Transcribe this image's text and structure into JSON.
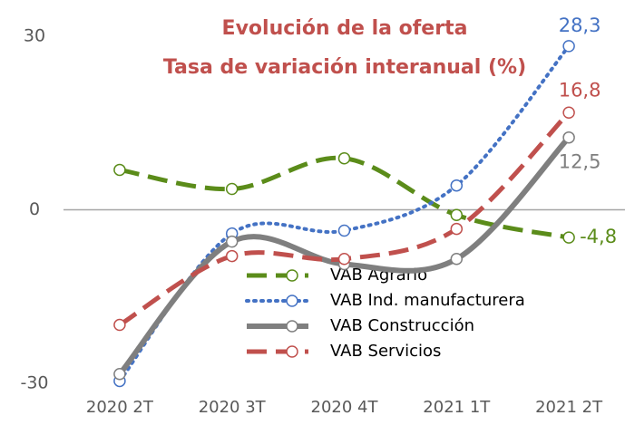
{
  "chart_data": {
    "type": "line",
    "title": "Evolución de la oferta",
    "subtitle": "Tasa de variación interanual (%)",
    "categories": [
      "2020 2T",
      "2020 3T",
      "2020 4T",
      "2021 1T",
      "2021 2T"
    ],
    "series": [
      {
        "name": "VAB Agrario",
        "color": "#5b8c1a",
        "dash": "dashed",
        "values": [
          6.9,
          3.6,
          8.9,
          -0.9,
          -4.8
        ],
        "value_labels": [
          null,
          null,
          null,
          null,
          "-4,8"
        ]
      },
      {
        "name": "VAB Ind. manufacturera",
        "color": "#4472c4",
        "dash": "dotted",
        "values": [
          -29.6,
          -4.1,
          -3.6,
          4.2,
          28.3
        ],
        "value_labels": [
          null,
          null,
          null,
          null,
          "28,3"
        ]
      },
      {
        "name": "VAB Construcción",
        "color": "#7f7f7f",
        "dash": "solid",
        "values": [
          -28.4,
          -5.5,
          -9.4,
          -8.5,
          12.5
        ],
        "value_labels": [
          null,
          null,
          null,
          null,
          "12,5"
        ]
      },
      {
        "name": "VAB Servicios",
        "color": "#c0504d",
        "dash": "dashed",
        "values": [
          -19.9,
          -8.0,
          -8.5,
          -3.3,
          16.8
        ],
        "value_labels": [
          null,
          null,
          null,
          null,
          "16,8"
        ]
      }
    ],
    "ylim": [
      -30,
      30
    ],
    "yticks": [
      -30,
      0,
      30
    ],
    "grid": false
  }
}
